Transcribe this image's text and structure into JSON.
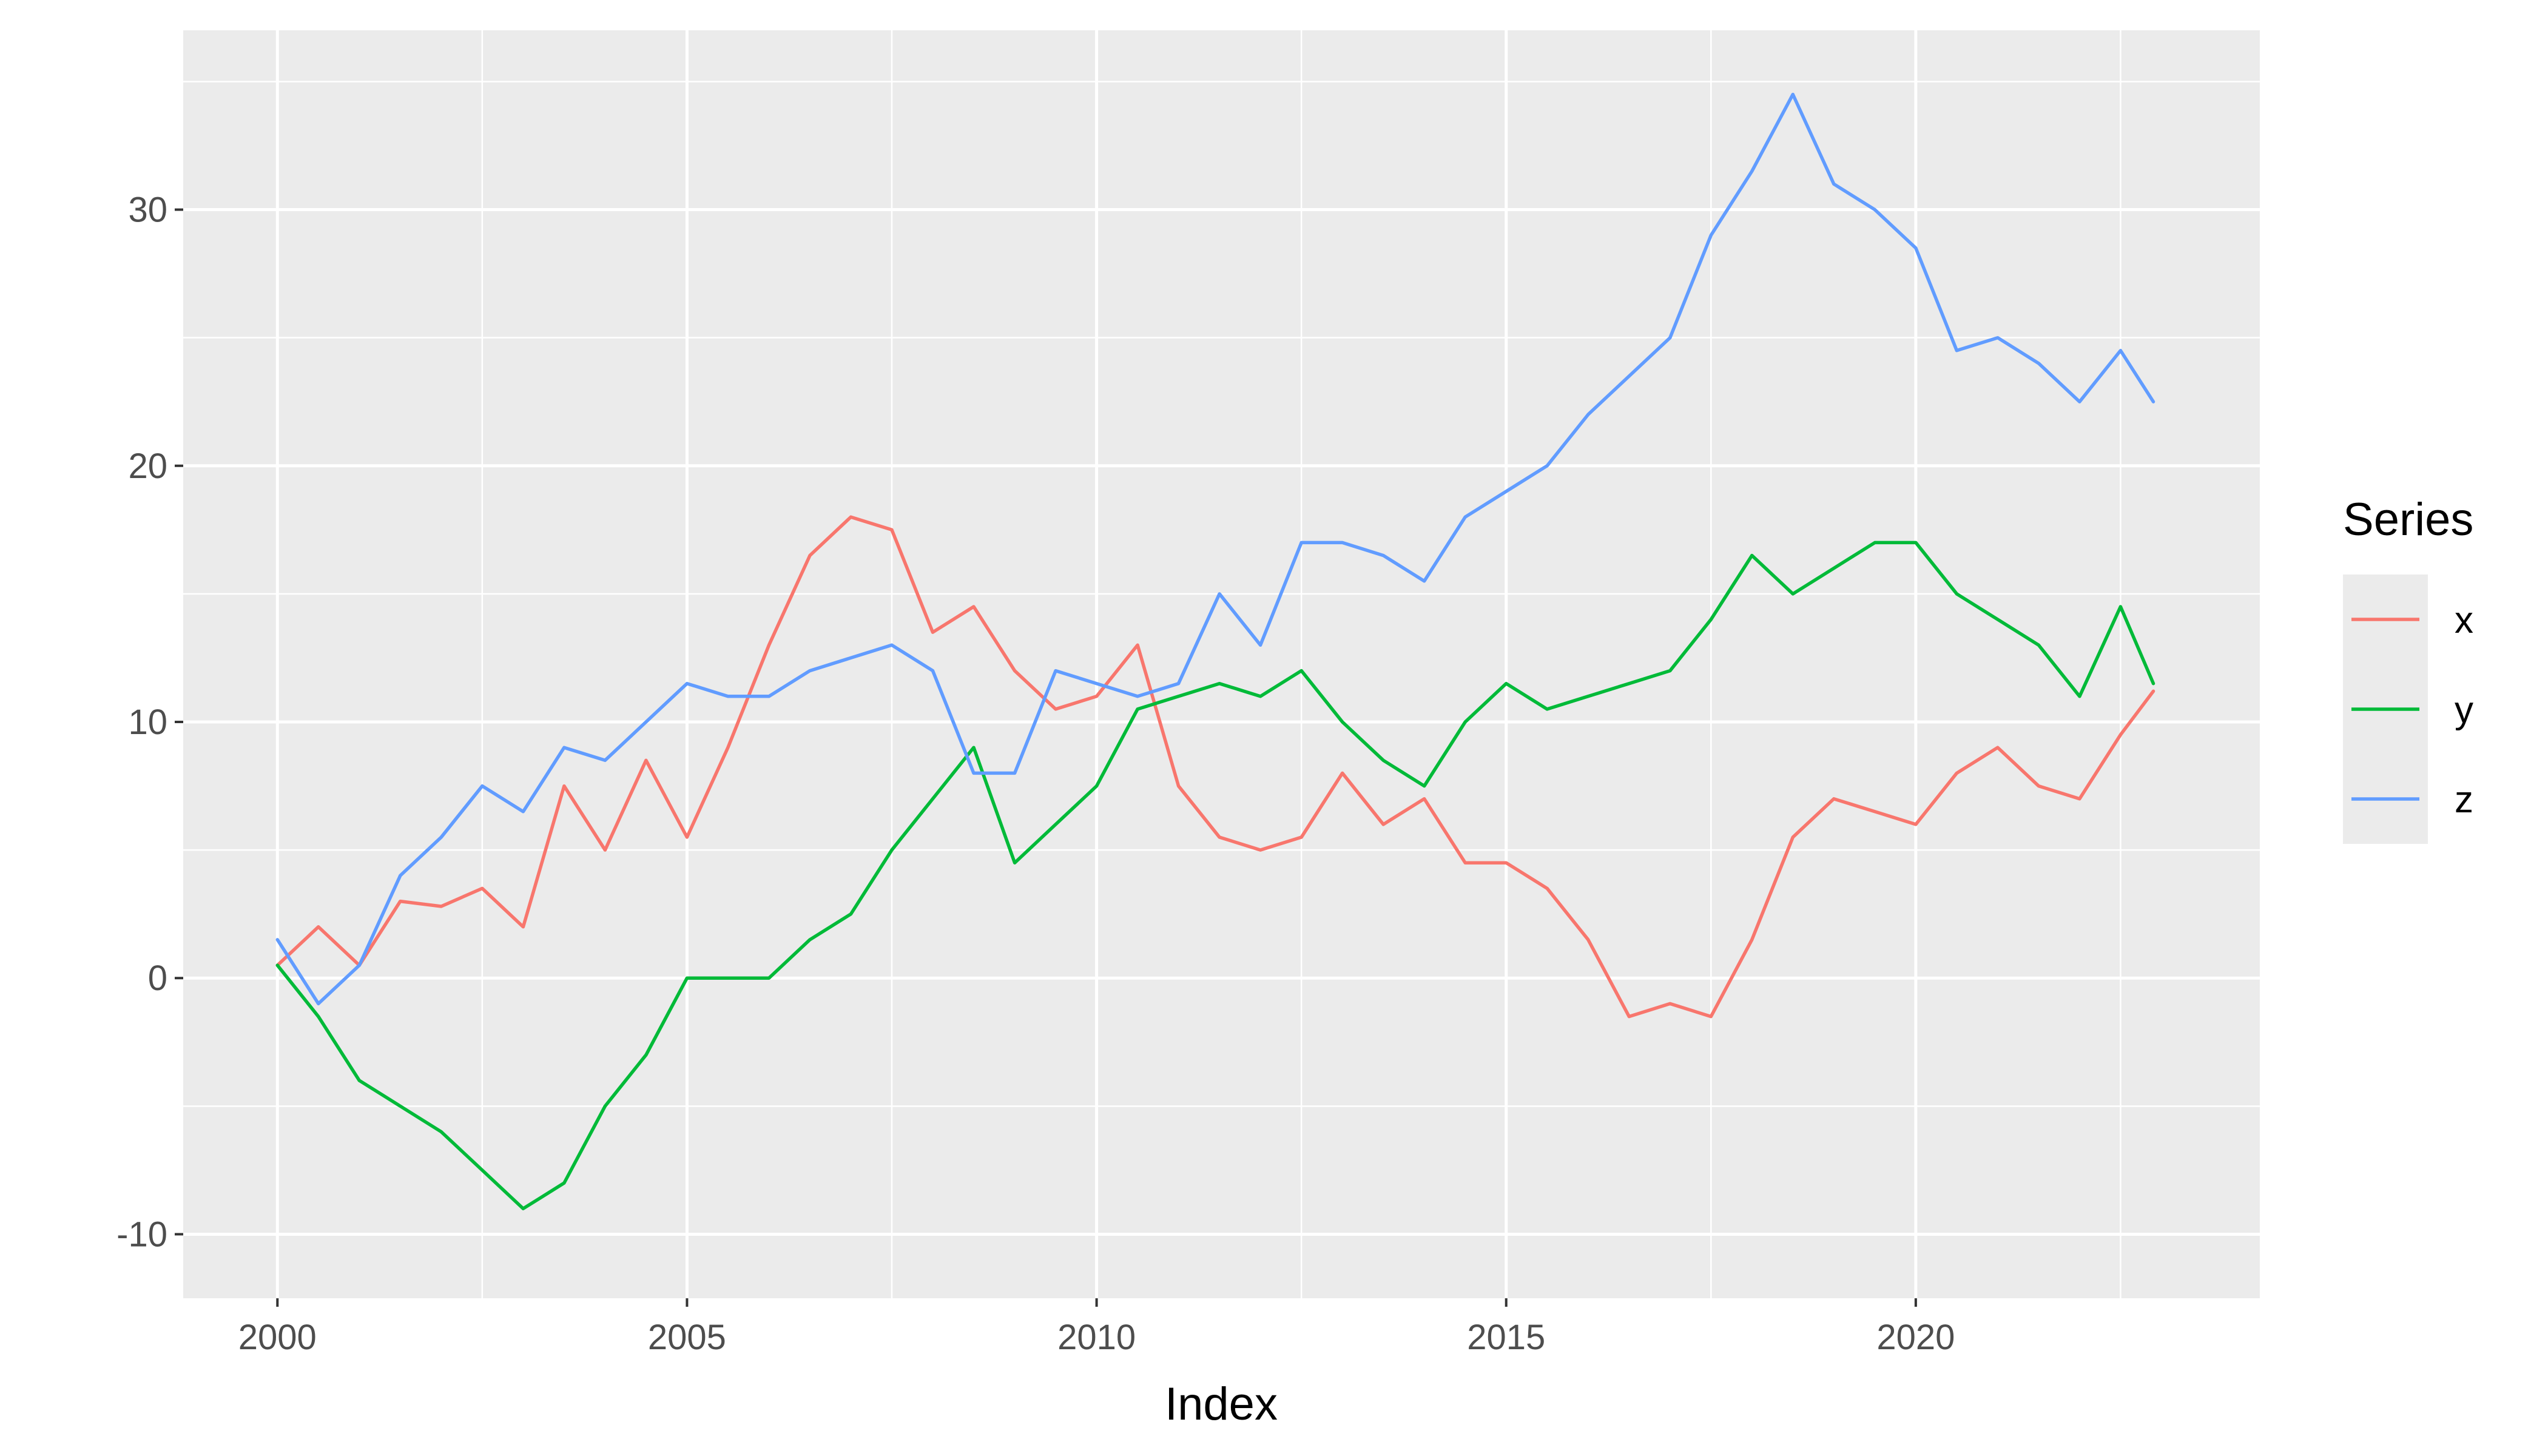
{
  "chart_data": {
    "type": "line",
    "xlabel": "Index",
    "ylabel": "",
    "title": "",
    "xlim": [
      1998.85,
      2024.2
    ],
    "ylim": [
      -12.5,
      37
    ],
    "x_ticks": [
      2000,
      2005,
      2010,
      2015,
      2020
    ],
    "x_tick_labels": [
      "2000",
      "2005",
      "2010",
      "2015",
      "2020"
    ],
    "y_ticks": [
      -10,
      0,
      10,
      20,
      30
    ],
    "y_tick_labels": [
      "-10",
      "0",
      "10",
      "20",
      "30"
    ],
    "grid": true,
    "legend": {
      "title": "Series",
      "position": "right"
    },
    "x": [
      2000.0,
      2000.5,
      2001.0,
      2001.5,
      2002.0,
      2002.5,
      2003.0,
      2003.5,
      2004.0,
      2004.5,
      2005.0,
      2005.5,
      2006.0,
      2006.5,
      2007.0,
      2007.5,
      2008.0,
      2008.5,
      2009.0,
      2009.5,
      2010.0,
      2010.5,
      2011.0,
      2011.5,
      2012.0,
      2012.5,
      2013.0,
      2013.5,
      2014.0,
      2014.5,
      2015.0,
      2015.5,
      2016.0,
      2016.5,
      2017.0,
      2017.5,
      2018.0,
      2018.5,
      2019.0,
      2019.5,
      2020.0,
      2020.5,
      2021.0,
      2021.5,
      2022.0,
      2022.5,
      2022.9
    ],
    "series": [
      {
        "name": "x",
        "color": "#F8766D",
        "values": [
          0.5,
          2.0,
          0.5,
          3.0,
          2.8,
          3.5,
          2.0,
          7.5,
          5.0,
          8.5,
          5.5,
          9.0,
          13.0,
          16.5,
          18.0,
          17.5,
          13.5,
          14.5,
          12.0,
          10.5,
          11.0,
          13.0,
          7.5,
          5.5,
          5.0,
          5.5,
          8.0,
          6.0,
          7.0,
          4.5,
          4.5,
          3.5,
          1.5,
          -1.5,
          -1.0,
          -1.5,
          1.5,
          5.5,
          7.0,
          6.5,
          6.0,
          8.0,
          9.0,
          7.5,
          7.0,
          9.5,
          11.2
        ]
      },
      {
        "name": "y",
        "color": "#00BA38",
        "values": [
          0.5,
          -1.5,
          -4.0,
          -5.0,
          -6.0,
          -7.5,
          -9.0,
          -8.0,
          -5.0,
          -3.0,
          0.0,
          0.0,
          0.0,
          1.5,
          2.5,
          5.0,
          7.0,
          9.0,
          4.5,
          6.0,
          7.5,
          10.5,
          11.0,
          11.5,
          11.0,
          12.0,
          10.0,
          8.5,
          7.5,
          10.0,
          11.5,
          10.5,
          11.0,
          11.5,
          12.0,
          14.0,
          16.5,
          15.0,
          16.0,
          17.0,
          17.0,
          15.0,
          14.0,
          13.0,
          11.0,
          14.5,
          11.5
        ]
      },
      {
        "name": "z",
        "color": "#619CFF",
        "values": [
          1.5,
          -1.0,
          0.5,
          4.0,
          5.5,
          7.5,
          6.5,
          9.0,
          8.5,
          10.0,
          11.5,
          11.0,
          11.0,
          12.0,
          12.5,
          13.0,
          12.0,
          8.0,
          8.0,
          12.0,
          11.5,
          11.0,
          11.5,
          15.0,
          13.0,
          17.0,
          17.0,
          16.5,
          15.5,
          18.0,
          19.0,
          20.0,
          22.0,
          23.5,
          25.0,
          29.0,
          31.5,
          34.5,
          31.0,
          30.0,
          28.5,
          24.5,
          25.0,
          24.0,
          22.5,
          24.5,
          22.5
        ]
      }
    ]
  }
}
